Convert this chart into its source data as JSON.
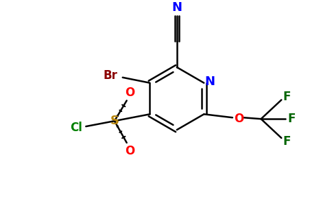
{
  "background_color": "#ffffff",
  "bond_color": "#000000",
  "atom_colors": {
    "N_cyan": "#0000ff",
    "N_ring": "#0000ff",
    "Br": "#8b0000",
    "O": "#ff0000",
    "S": "#b8860b",
    "Cl": "#008000",
    "F": "#006400",
    "C": "#000000"
  },
  "figure_width": 4.84,
  "figure_height": 3.0,
  "dpi": 100
}
